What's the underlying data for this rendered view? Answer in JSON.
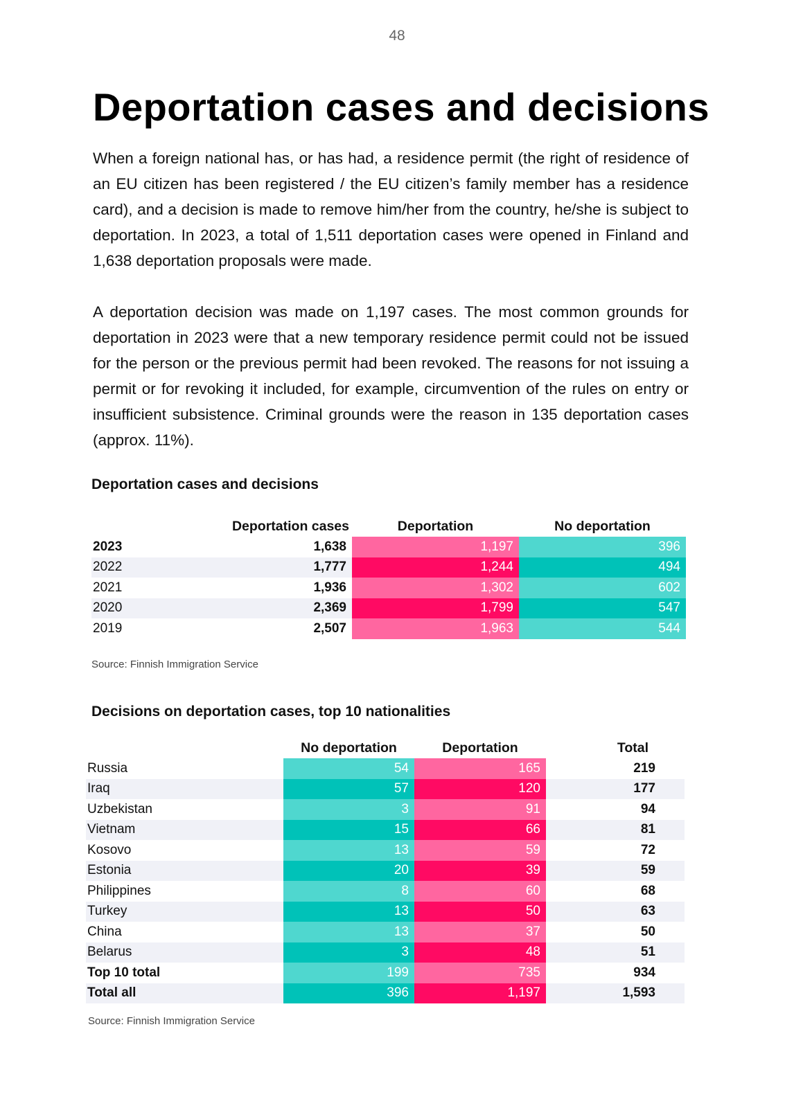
{
  "page_number": "48",
  "title": "Deportation cases and decisions",
  "paragraphs": [
    "When a foreign national has, or has had, a residence permit (the right of residence of an EU citizen has been registered / the EU citizen’s family member has a residence card), and a decision is made to remove him/her from the country, he/she is subject to deportation.  In 2023, a total of 1,511 deportation cases were opened in Finland and 1,638 deportation proposals were made.",
    "A deportation decision was made on 1,197 cases. The most common grounds for deportation in 2023 were that a new temporary residence permit could not be issued for the person or the previous permit had been revoked. The reasons for not issuing a permit or for revoking it included, for example, circumvention of the rules on entry or insufficient subsistence. Criminal grounds were the reason in 135 deportation cases (approx. 11%)."
  ],
  "table1": {
    "title": "Deportation cases and decisions",
    "headers": [
      "",
      "Deportation cases",
      "Deportation",
      "No deportation"
    ],
    "rows": [
      {
        "year": "2023",
        "cases": "1,638",
        "deportation": "1,197",
        "no_deportation": "396"
      },
      {
        "year": "2022",
        "cases": "1,777",
        "deportation": "1,244",
        "no_deportation": "494"
      },
      {
        "year": "2021",
        "cases": "1,936",
        "deportation": "1,302",
        "no_deportation": "602"
      },
      {
        "year": "2020",
        "cases": "2,369",
        "deportation": "1,799",
        "no_deportation": "547"
      },
      {
        "year": "2019",
        "cases": "2,507",
        "deportation": "1,963",
        "no_deportation": "544"
      }
    ],
    "source": "Source: Finnish Immigration Service"
  },
  "table2": {
    "title": "Decisions on deportation cases, top 10 nationalities",
    "headers": [
      "",
      "No deportation",
      "Deportation",
      "Total"
    ],
    "rows": [
      {
        "country": "Russia",
        "no_deportation": "54",
        "deportation": "165",
        "total": "219"
      },
      {
        "country": "Iraq",
        "no_deportation": "57",
        "deportation": "120",
        "total": "177"
      },
      {
        "country": "Uzbekistan",
        "no_deportation": "3",
        "deportation": "91",
        "total": "94"
      },
      {
        "country": "Vietnam",
        "no_deportation": "15",
        "deportation": "66",
        "total": "81"
      },
      {
        "country": "Kosovo",
        "no_deportation": "13",
        "deportation": "59",
        "total": "72"
      },
      {
        "country": "Estonia",
        "no_deportation": "20",
        "deportation": "39",
        "total": "59"
      },
      {
        "country": "Philippines",
        "no_deportation": "8",
        "deportation": "60",
        "total": "68"
      },
      {
        "country": "Turkey",
        "no_deportation": "13",
        "deportation": "50",
        "total": "63"
      },
      {
        "country": "China",
        "no_deportation": "13",
        "deportation": "37",
        "total": "50"
      },
      {
        "country": "Belarus",
        "no_deportation": "3",
        "deportation": "48",
        "total": "51"
      },
      {
        "country": "Top 10 total",
        "no_deportation": "199",
        "deportation": "735",
        "total": "934"
      },
      {
        "country": "Total all",
        "no_deportation": "396",
        "deportation": "1,197",
        "total": "1,593"
      }
    ],
    "source": "Source: Finnish Immigration Service"
  },
  "colors": {
    "deportation_light": "#ff66a0",
    "deportation_dark": "#ff0a63",
    "no_deportation_light": "#4fd7cf",
    "no_deportation_dark": "#00c2b8",
    "row_stripe": "#f0f1f7"
  }
}
